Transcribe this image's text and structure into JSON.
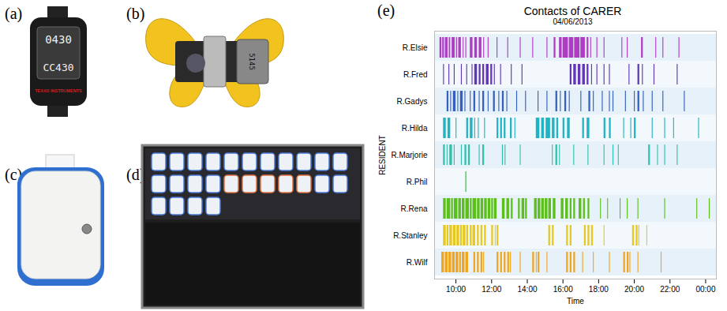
{
  "panels": [
    {
      "label": "(a)",
      "texts": [
        "0430",
        "CC430",
        "TEXAS INSTRUMENTS"
      ]
    },
    {
      "label": "(b)",
      "texts": [
        "5145"
      ]
    },
    {
      "label": "(c)"
    },
    {
      "label": "(d)"
    }
  ],
  "chart_data": {
    "label": "(e)",
    "type": "timeline",
    "title": "Contacts of CARER",
    "subtitle": "04/06/2013",
    "x_label": "Time",
    "y_label": "RESIDENT",
    "categories": [
      "R.Elsie",
      "R.Fred",
      "R.Gadys",
      "R.Hilda",
      "R.Marjorie",
      "R.Phil",
      "R.Rena",
      "R.Stanley",
      "R.Wilf"
    ],
    "xlim": [
      8.8,
      24.6
    ],
    "xticks": [
      {
        "value": 10,
        "label": "10:00"
      },
      {
        "value": 12,
        "label": "12:00"
      },
      {
        "value": 14,
        "label": "14:00"
      },
      {
        "value": 16,
        "label": "16:00"
      },
      {
        "value": 18,
        "label": "18:00"
      },
      {
        "value": 20,
        "label": "20:00"
      },
      {
        "value": 22,
        "label": "22:00"
      },
      {
        "value": 24,
        "label": "00:00"
      }
    ],
    "grid": false,
    "series": [
      {
        "name": "R.Elsie",
        "color": "#b03cc4",
        "values": [
          [
            9.1,
            9.2
          ],
          [
            9.25,
            9.35
          ],
          [
            9.4,
            9.55
          ],
          [
            9.62,
            9.7
          ],
          [
            9.78,
            9.95
          ],
          [
            10.02,
            10.08
          ],
          [
            10.15,
            10.3
          ],
          [
            10.4,
            10.45
          ],
          [
            10.55,
            10.6
          ],
          [
            10.8,
            10.95
          ],
          [
            11.05,
            11.2
          ],
          [
            11.3,
            11.45
          ],
          [
            11.55,
            11.6
          ],
          [
            11.8,
            11.85
          ],
          [
            12.3,
            12.35
          ],
          [
            12.9,
            12.95
          ],
          [
            13.6,
            13.65
          ],
          [
            14.3,
            14.35
          ],
          [
            15.1,
            15.15
          ],
          [
            15.5,
            15.6
          ],
          [
            15.8,
            15.95
          ],
          [
            16.0,
            16.3
          ],
          [
            16.35,
            16.6
          ],
          [
            16.65,
            16.95
          ],
          [
            17.0,
            17.25
          ],
          [
            17.35,
            17.45
          ],
          [
            17.55,
            17.6
          ],
          [
            17.9,
            17.95
          ],
          [
            18.3,
            18.35
          ],
          [
            19.3,
            19.35
          ],
          [
            19.6,
            19.65
          ],
          [
            20.4,
            20.5
          ],
          [
            21.2,
            21.25
          ],
          [
            21.6,
            21.65
          ],
          [
            22.5,
            22.55
          ]
        ]
      },
      {
        "name": "R.Fred",
        "color": "#6236b4",
        "values": [
          [
            9.3,
            9.35
          ],
          [
            9.6,
            9.65
          ],
          [
            9.9,
            9.95
          ],
          [
            10.3,
            10.35
          ],
          [
            10.6,
            10.65
          ],
          [
            10.9,
            10.95
          ],
          [
            11.05,
            11.2
          ],
          [
            11.3,
            11.4
          ],
          [
            11.5,
            11.6
          ],
          [
            11.7,
            11.85
          ],
          [
            11.95,
            12.05
          ],
          [
            12.15,
            12.2
          ],
          [
            12.5,
            12.55
          ],
          [
            13.1,
            13.15
          ],
          [
            13.7,
            13.75
          ],
          [
            16.4,
            16.5
          ],
          [
            16.6,
            16.75
          ],
          [
            16.85,
            17.0
          ],
          [
            17.1,
            17.25
          ],
          [
            17.35,
            17.45
          ],
          [
            17.6,
            17.65
          ],
          [
            17.9,
            17.95
          ],
          [
            18.3,
            18.35
          ],
          [
            18.6,
            18.65
          ],
          [
            19.7,
            19.75
          ],
          [
            20.2,
            20.3
          ],
          [
            20.45,
            20.5
          ],
          [
            21.1,
            21.15
          ],
          [
            22.4,
            22.45
          ]
        ]
      },
      {
        "name": "R.Gadys",
        "color": "#3560bd",
        "values": [
          [
            9.5,
            9.6
          ],
          [
            9.7,
            9.75
          ],
          [
            9.85,
            10.0
          ],
          [
            10.1,
            10.15
          ],
          [
            10.25,
            10.4
          ],
          [
            10.5,
            10.55
          ],
          [
            10.8,
            10.85
          ],
          [
            11.0,
            11.1
          ],
          [
            11.3,
            11.35
          ],
          [
            11.5,
            11.6
          ],
          [
            11.8,
            11.85
          ],
          [
            12.1,
            12.2
          ],
          [
            12.4,
            12.45
          ],
          [
            12.6,
            12.7
          ],
          [
            12.85,
            12.9
          ],
          [
            13.4,
            13.45
          ],
          [
            13.9,
            13.95
          ],
          [
            14.6,
            14.65
          ],
          [
            15.1,
            15.15
          ],
          [
            15.6,
            15.7
          ],
          [
            15.85,
            15.9
          ],
          [
            16.1,
            16.2
          ],
          [
            16.35,
            16.4
          ],
          [
            17.0,
            17.05
          ],
          [
            17.45,
            17.55
          ],
          [
            17.7,
            17.75
          ],
          [
            18.2,
            18.25
          ],
          [
            18.6,
            18.65
          ],
          [
            18.8,
            18.85
          ],
          [
            19.5,
            19.55
          ],
          [
            20.0,
            20.05
          ],
          [
            20.2,
            20.3
          ],
          [
            20.5,
            20.55
          ],
          [
            21.0,
            21.05
          ],
          [
            21.6,
            21.65
          ],
          [
            22.8,
            22.85
          ]
        ]
      },
      {
        "name": "R.Hilda",
        "color": "#1fb3c4",
        "values": [
          [
            9.3,
            9.45
          ],
          [
            9.55,
            9.7
          ],
          [
            10.0,
            10.05
          ],
          [
            10.6,
            10.7
          ],
          [
            10.8,
            10.95
          ],
          [
            11.05,
            11.1
          ],
          [
            11.25,
            11.3
          ],
          [
            11.6,
            11.65
          ],
          [
            12.3,
            12.4
          ],
          [
            12.5,
            12.6
          ],
          [
            12.7,
            12.8
          ],
          [
            13.05,
            13.15
          ],
          [
            13.3,
            13.35
          ],
          [
            14.5,
            14.7
          ],
          [
            14.8,
            14.95
          ],
          [
            15.05,
            15.3
          ],
          [
            15.4,
            15.55
          ],
          [
            15.65,
            15.75
          ],
          [
            16.0,
            16.1
          ],
          [
            16.25,
            16.4
          ],
          [
            17.1,
            17.2
          ],
          [
            17.35,
            17.5
          ],
          [
            18.3,
            18.4
          ],
          [
            18.6,
            18.7
          ],
          [
            19.4,
            19.45
          ],
          [
            19.8,
            19.85
          ],
          [
            20.0,
            20.1
          ],
          [
            21.0,
            21.05
          ],
          [
            21.7,
            21.75
          ],
          [
            22.2,
            22.25
          ],
          [
            23.6,
            23.65
          ]
        ]
      },
      {
        "name": "R.Marjorie",
        "color": "#2ec2ad",
        "values": [
          [
            9.3,
            9.4
          ],
          [
            9.5,
            9.55
          ],
          [
            9.65,
            9.8
          ],
          [
            9.9,
            9.95
          ],
          [
            10.3,
            10.35
          ],
          [
            10.5,
            10.6
          ],
          [
            10.7,
            10.8
          ],
          [
            11.3,
            11.35
          ],
          [
            11.5,
            11.6
          ],
          [
            12.6,
            12.65
          ],
          [
            12.75,
            12.8
          ],
          [
            13.6,
            13.65
          ],
          [
            15.4,
            15.45
          ],
          [
            15.6,
            15.7
          ],
          [
            15.8,
            15.85
          ],
          [
            16.6,
            16.65
          ],
          [
            17.4,
            17.45
          ],
          [
            18.3,
            18.35
          ],
          [
            18.8,
            18.85
          ],
          [
            19.1,
            19.15
          ],
          [
            20.8,
            20.9
          ],
          [
            21.3,
            21.35
          ],
          [
            21.7,
            21.75
          ],
          [
            22.4,
            22.45
          ]
        ]
      },
      {
        "name": "R.Phil",
        "color": "#3aae44",
        "values": [
          [
            10.55,
            10.6
          ]
        ]
      },
      {
        "name": "R.Rena",
        "color": "#5cbf1c",
        "values": [
          [
            9.3,
            9.45
          ],
          [
            9.5,
            9.7
          ],
          [
            9.75,
            9.85
          ],
          [
            9.9,
            10.1
          ],
          [
            10.15,
            10.3
          ],
          [
            10.35,
            10.5
          ],
          [
            10.55,
            10.75
          ],
          [
            10.8,
            10.9
          ],
          [
            10.95,
            11.15
          ],
          [
            11.2,
            11.35
          ],
          [
            11.4,
            11.55
          ],
          [
            11.6,
            11.75
          ],
          [
            11.8,
            11.95
          ],
          [
            12.0,
            12.1
          ],
          [
            12.15,
            12.3
          ],
          [
            12.6,
            12.75
          ],
          [
            12.85,
            13.0
          ],
          [
            13.1,
            13.2
          ],
          [
            13.5,
            13.6
          ],
          [
            13.7,
            13.85
          ],
          [
            13.9,
            14.0
          ],
          [
            14.4,
            14.55
          ],
          [
            14.6,
            14.75
          ],
          [
            14.8,
            14.95
          ],
          [
            15.0,
            15.15
          ],
          [
            15.2,
            15.35
          ],
          [
            15.45,
            15.6
          ],
          [
            15.9,
            16.05
          ],
          [
            16.15,
            16.3
          ],
          [
            16.4,
            16.5
          ],
          [
            16.6,
            16.7
          ],
          [
            16.9,
            17.05
          ],
          [
            17.15,
            17.25
          ],
          [
            17.4,
            17.5
          ],
          [
            18.1,
            18.15
          ],
          [
            18.5,
            18.55
          ],
          [
            19.2,
            19.25
          ],
          [
            19.6,
            19.65
          ],
          [
            20.2,
            20.25
          ],
          [
            21.7,
            21.75
          ],
          [
            23.5,
            23.55
          ],
          [
            24.2,
            24.25
          ]
        ]
      },
      {
        "name": "R.Stanley",
        "color": "#e6c81e",
        "values": [
          [
            9.3,
            9.45
          ],
          [
            9.5,
            9.6
          ],
          [
            9.65,
            9.8
          ],
          [
            9.85,
            10.0
          ],
          [
            10.05,
            10.2
          ],
          [
            10.25,
            10.35
          ],
          [
            10.4,
            10.55
          ],
          [
            10.6,
            10.7
          ],
          [
            10.8,
            10.9
          ],
          [
            10.95,
            11.1
          ],
          [
            11.2,
            11.3
          ],
          [
            11.4,
            11.5
          ],
          [
            11.6,
            11.7
          ],
          [
            12.0,
            12.1
          ],
          [
            12.2,
            12.25
          ],
          [
            12.3,
            12.4
          ],
          [
            15.2,
            15.3
          ],
          [
            15.4,
            15.5
          ],
          [
            16.2,
            16.3
          ],
          [
            16.4,
            16.5
          ],
          [
            17.2,
            17.3
          ],
          [
            17.4,
            17.5
          ],
          [
            17.6,
            17.7
          ],
          [
            18.3,
            18.35
          ],
          [
            19.9,
            20.0
          ],
          [
            20.1,
            20.2
          ],
          [
            20.25,
            20.3
          ],
          [
            20.7,
            20.75
          ]
        ]
      },
      {
        "name": "R.Wilf",
        "color": "#f0a51e",
        "values": [
          [
            9.2,
            9.35
          ],
          [
            9.4,
            9.55
          ],
          [
            9.6,
            9.75
          ],
          [
            9.8,
            9.95
          ],
          [
            10.0,
            10.15
          ],
          [
            10.2,
            10.3
          ],
          [
            10.35,
            10.5
          ],
          [
            10.55,
            10.7
          ],
          [
            11.0,
            11.1
          ],
          [
            11.2,
            11.3
          ],
          [
            11.4,
            11.5
          ],
          [
            11.55,
            11.6
          ],
          [
            12.3,
            12.4
          ],
          [
            12.5,
            12.6
          ],
          [
            12.7,
            12.8
          ],
          [
            12.9,
            13.0
          ],
          [
            13.05,
            13.1
          ],
          [
            13.6,
            13.65
          ],
          [
            14.3,
            14.4
          ],
          [
            14.5,
            14.55
          ],
          [
            14.6,
            14.7
          ],
          [
            15.1,
            15.15
          ],
          [
            16.2,
            16.3
          ],
          [
            16.4,
            16.5
          ],
          [
            16.6,
            16.7
          ],
          [
            17.1,
            17.15
          ],
          [
            17.7,
            17.75
          ],
          [
            18.6,
            18.65
          ],
          [
            19.4,
            19.5
          ],
          [
            19.6,
            19.7
          ],
          [
            19.75,
            19.8
          ],
          [
            20.2,
            20.25
          ],
          [
            21.5,
            21.55
          ]
        ]
      }
    ]
  }
}
